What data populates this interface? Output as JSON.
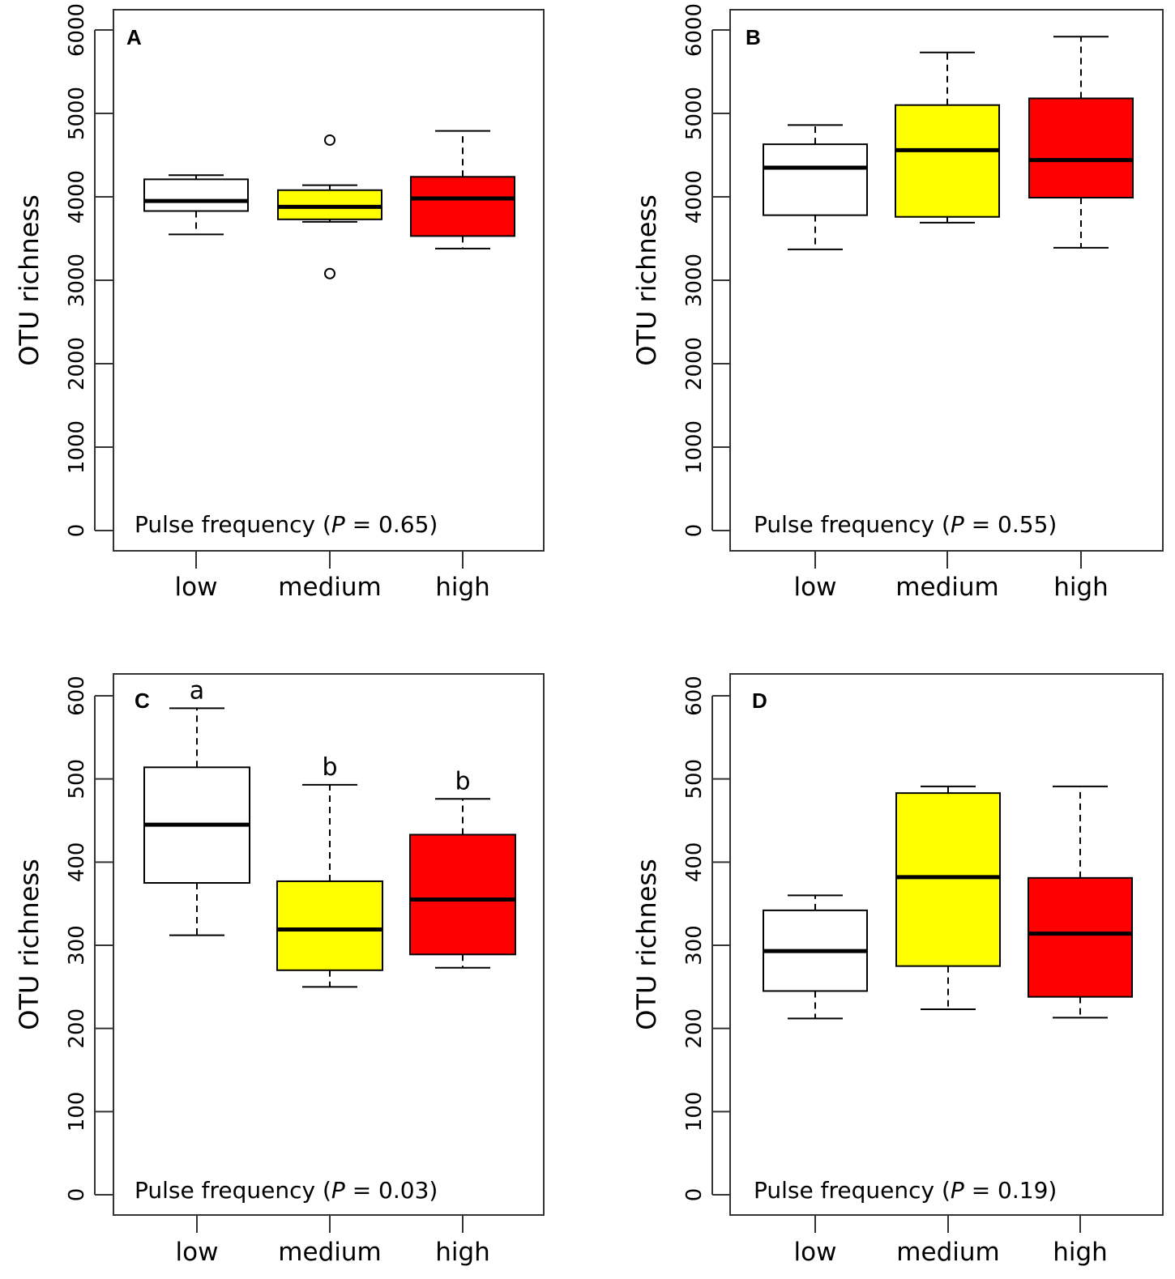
{
  "figure": {
    "ylabel": "OTU richness"
  },
  "chart_data": [
    {
      "type": "boxplot",
      "panel": "A",
      "ylabel": "OTU richness",
      "annotation": {
        "prefix": "Pulse frequency (",
        "p_symbol": "P",
        "suffix": " = 0.65)"
      },
      "ylim": [
        0,
        6000
      ],
      "yticks": [
        0,
        1000,
        2000,
        3000,
        4000,
        5000,
        6000
      ],
      "categories": [
        "low",
        "medium",
        "high"
      ],
      "colors": [
        "#ffffff",
        "#ffff00",
        "#ff0000"
      ],
      "series": [
        {
          "name": "low",
          "whisker_low": 3550,
          "q1": 3830,
          "median": 3950,
          "q3": 4210,
          "whisker_high": 4260,
          "outliers": []
        },
        {
          "name": "medium",
          "whisker_low": 3700,
          "q1": 3730,
          "median": 3880,
          "q3": 4080,
          "whisker_high": 4140,
          "outliers": [
            4680,
            3080
          ]
        },
        {
          "name": "high",
          "whisker_low": 3380,
          "q1": 3530,
          "median": 3980,
          "q3": 4240,
          "whisker_high": 4790,
          "outliers": []
        }
      ],
      "significance_letters": []
    },
    {
      "type": "boxplot",
      "panel": "B",
      "ylabel": "OTU richness",
      "annotation": {
        "prefix": "Pulse frequency (",
        "p_symbol": "P",
        "suffix": " = 0.55)"
      },
      "ylim": [
        0,
        6000
      ],
      "yticks": [
        0,
        1000,
        2000,
        3000,
        4000,
        5000,
        6000
      ],
      "categories": [
        "low",
        "medium",
        "high"
      ],
      "colors": [
        "#ffffff",
        "#ffff00",
        "#ff0000"
      ],
      "series": [
        {
          "name": "low",
          "whisker_low": 3370,
          "q1": 3780,
          "median": 4350,
          "q3": 4630,
          "whisker_high": 4860,
          "outliers": []
        },
        {
          "name": "medium",
          "whisker_low": 3690,
          "q1": 3760,
          "median": 4560,
          "q3": 5100,
          "whisker_high": 5730,
          "outliers": []
        },
        {
          "name": "high",
          "whisker_low": 3390,
          "q1": 3990,
          "median": 4440,
          "q3": 5180,
          "whisker_high": 5920,
          "outliers": []
        }
      ],
      "significance_letters": []
    },
    {
      "type": "boxplot",
      "panel": "C",
      "ylabel": "OTU richness",
      "annotation": {
        "prefix": "Pulse frequency (",
        "p_symbol": "P",
        "suffix": " = 0.03)"
      },
      "ylim": [
        0,
        600
      ],
      "yticks": [
        0,
        100,
        200,
        300,
        400,
        500,
        600
      ],
      "categories": [
        "low",
        "medium",
        "high"
      ],
      "colors": [
        "#ffffff",
        "#ffff00",
        "#ff0000"
      ],
      "series": [
        {
          "name": "low",
          "whisker_low": 312,
          "q1": 375,
          "median": 445,
          "q3": 514,
          "whisker_high": 585,
          "outliers": []
        },
        {
          "name": "medium",
          "whisker_low": 250,
          "q1": 270,
          "median": 319,
          "q3": 377,
          "whisker_high": 493,
          "outliers": []
        },
        {
          "name": "high",
          "whisker_low": 273,
          "q1": 289,
          "median": 355,
          "q3": 433,
          "whisker_high": 476,
          "outliers": []
        }
      ],
      "significance_letters": [
        "a",
        "b",
        "b"
      ]
    },
    {
      "type": "boxplot",
      "panel": "D",
      "ylabel": "OTU richness",
      "annotation": {
        "prefix": "Pulse frequency (",
        "p_symbol": "P",
        "suffix": " = 0.19)"
      },
      "ylim": [
        0,
        600
      ],
      "yticks": [
        0,
        100,
        200,
        300,
        400,
        500,
        600
      ],
      "categories": [
        "low",
        "medium",
        "high"
      ],
      "colors": [
        "#ffffff",
        "#ffff00",
        "#ff0000"
      ],
      "series": [
        {
          "name": "low",
          "whisker_low": 212,
          "q1": 245,
          "median": 293,
          "q3": 342,
          "whisker_high": 360,
          "outliers": []
        },
        {
          "name": "medium",
          "whisker_low": 223,
          "q1": 275,
          "median": 382,
          "q3": 483,
          "whisker_high": 491,
          "outliers": []
        },
        {
          "name": "high",
          "whisker_low": 213,
          "q1": 238,
          "median": 314,
          "q3": 381,
          "whisker_high": 491,
          "outliers": []
        }
      ],
      "significance_letters": []
    }
  ]
}
